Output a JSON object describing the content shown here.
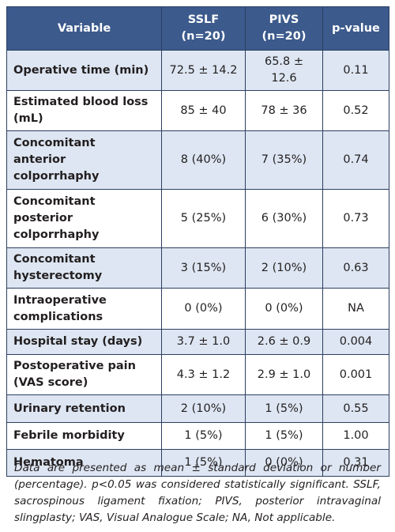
{
  "table": {
    "header": [
      "Variable",
      "SSLF\n(n=20)",
      "PIVS\n(n=20)",
      "p-value"
    ],
    "rows": [
      [
        "Operative time (min)",
        "72.5 ± 14.2",
        "65.8 ± 12.6",
        "0.11"
      ],
      [
        "Estimated blood loss\n(mL)",
        "85 ± 40",
        "78 ± 36",
        "0.52"
      ],
      [
        "Concomitant\nanterior\ncolporrhaphy",
        "8 (40%)",
        "7 (35%)",
        "0.74"
      ],
      [
        "Concomitant\nposterior\ncolporrhaphy",
        "5 (25%)",
        "6 (30%)",
        "0.73"
      ],
      [
        "Concomitant\nhysterectomy",
        "3 (15%)",
        "2 (10%)",
        "0.63"
      ],
      [
        "Intraoperative\ncomplications",
        "0 (0%)",
        "0 (0%)",
        "NA"
      ],
      [
        "Hospital stay (days)",
        "3.7 ± 1.0",
        "2.6 ± 0.9",
        "0.004"
      ],
      [
        "Postoperative pain\n(VAS score)",
        "4.3 ± 1.2",
        "2.9 ± 1.0",
        "0.001"
      ],
      [
        "Urinary retention",
        "2 (10%)",
        "1 (5%)",
        "0.55"
      ],
      [
        "Febrile morbidity",
        "1 (5%)",
        "1 (5%)",
        "1.00"
      ],
      [
        "Hematoma",
        "1 (5%)",
        "0 (0%)",
        "0.31"
      ]
    ]
  },
  "footnote": "Data are presented as mean ± standard deviation or number (percentage). p<0.05 was considered statistically significant. SSLF, sacrospinous ligament fixation; PIVS, posterior intravaginal slingplasty;  VAS, Visual Analogue Scale; NA, Not applicable."
}
